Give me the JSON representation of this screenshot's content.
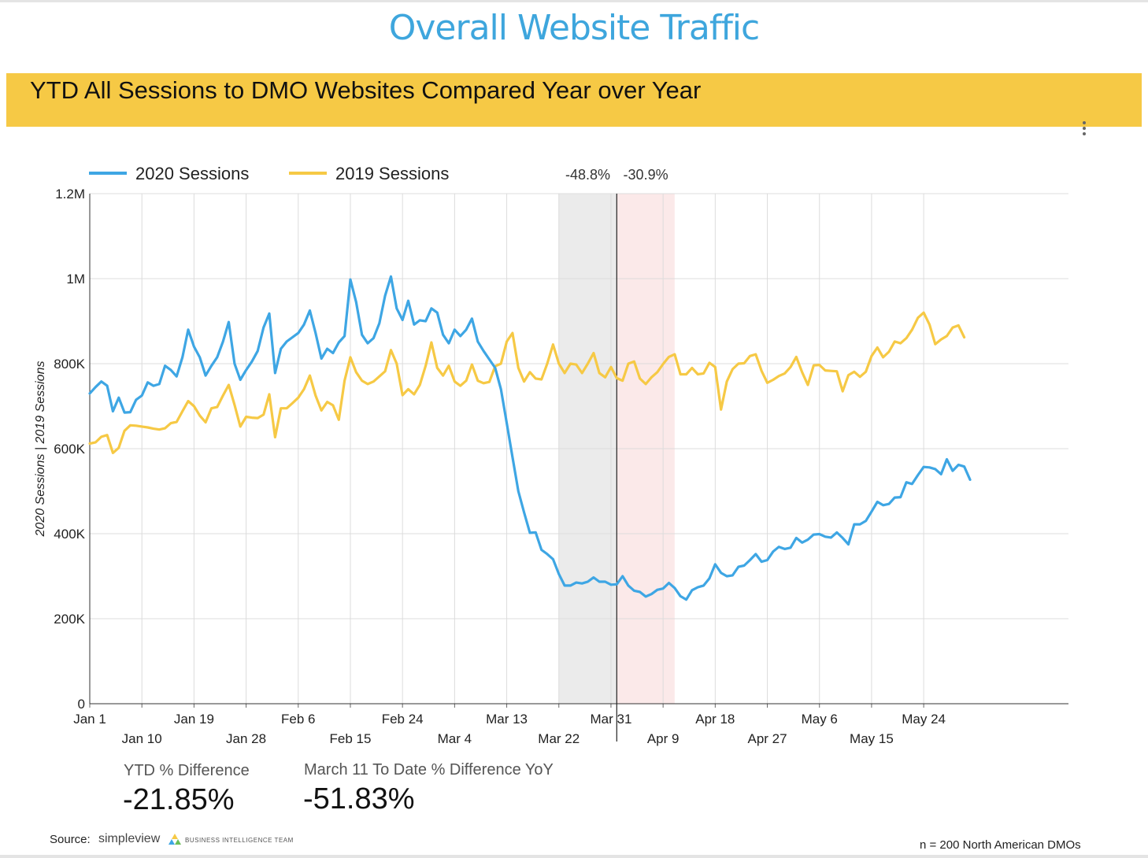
{
  "header": {
    "title": "Overall Website Traffic"
  },
  "banner": {
    "title": "YTD All Sessions to DMO Websites Compared Year over Year"
  },
  "menu": {
    "icon": "more-vert-icon"
  },
  "kpis": [
    {
      "label": "YTD % Difference",
      "value": "-21.85%"
    },
    {
      "label": "March 11 To Date % Difference YoY",
      "value": "-51.83%"
    }
  ],
  "footer": {
    "source_label": "Source:",
    "logo_word": "simpleview",
    "logo_sub": "BUSINESS INTELLIGENCE TEAM",
    "note": "n = 200 North American DMOs"
  },
  "colors": {
    "s2020": "#3ea6e4",
    "s2019": "#f6c945",
    "banner": "#f6c945",
    "title": "#3ea6dd",
    "shadeGray": "#ebebeb",
    "shadePink": "#fbe9e9"
  },
  "chart_data": {
    "type": "line",
    "title": "",
    "xlabel": "",
    "ylabel": "2020 Sessions | 2019 Sessions",
    "ylim": [
      0,
      1200000
    ],
    "yticks": [
      0,
      200000,
      400000,
      600000,
      800000,
      1000000,
      1200000
    ],
    "ytick_labels": [
      "0",
      "200K",
      "400K",
      "600K",
      "800K",
      "1M",
      "1.2M"
    ],
    "x_start": "Jan 1",
    "x_days": 169,
    "xticks": [
      {
        "day": 0,
        "label": "Jan 1"
      },
      {
        "day": 9,
        "label": "Jan 10"
      },
      {
        "day": 18,
        "label": "Jan 19"
      },
      {
        "day": 27,
        "label": "Jan 28"
      },
      {
        "day": 36,
        "label": "Feb 6"
      },
      {
        "day": 45,
        "label": "Feb 15"
      },
      {
        "day": 54,
        "label": "Feb 24"
      },
      {
        "day": 63,
        "label": "Mar 4"
      },
      {
        "day": 72,
        "label": "Mar 13"
      },
      {
        "day": 81,
        "label": "Mar 22"
      },
      {
        "day": 90,
        "label": "Mar 31"
      },
      {
        "day": 99,
        "label": "Apr 9"
      },
      {
        "day": 108,
        "label": "Apr 18"
      },
      {
        "day": 117,
        "label": "Apr 27"
      },
      {
        "day": 126,
        "label": "May 6"
      },
      {
        "day": 135,
        "label": "May 15"
      },
      {
        "day": 144,
        "label": "May 24"
      }
    ],
    "legend_position": "top-left",
    "grid": true,
    "bands": [
      {
        "start": "Mar 22",
        "end": "Apr 1",
        "label": "-48.8%"
      },
      {
        "start": "Apr 1",
        "end": "Apr 11",
        "label": "-30.9%"
      }
    ],
    "divider": "Apr 1",
    "series": [
      {
        "name": "2020 Sessions",
        "values": [
          730000,
          745000,
          758000,
          748000,
          688000,
          720000,
          685000,
          686000,
          715000,
          725000,
          756000,
          748000,
          752000,
          795000,
          785000,
          770000,
          815000,
          880000,
          840000,
          815000,
          772000,
          795000,
          815000,
          852000,
          898000,
          800000,
          762000,
          785000,
          805000,
          830000,
          885000,
          918000,
          778000,
          835000,
          852000,
          862000,
          872000,
          892000,
          925000,
          872000,
          812000,
          835000,
          825000,
          850000,
          865000,
          998000,
          945000,
          868000,
          848000,
          860000,
          895000,
          960000,
          1005000,
          930000,
          903000,
          948000,
          892000,
          902000,
          900000,
          930000,
          920000,
          868000,
          848000,
          880000,
          865000,
          880000,
          906000,
          852000,
          830000,
          810000,
          790000,
          740000,
          660000,
          580000,
          500000,
          450000,
          402000,
          403000,
          362000,
          352000,
          340000,
          305000,
          278000,
          278000,
          285000,
          283000,
          287000,
          297000,
          287000,
          287000,
          280000,
          281000,
          300000,
          278000,
          266000,
          263000,
          252000,
          258000,
          268000,
          271000,
          284000,
          272000,
          253000,
          245000,
          267000,
          274000,
          278000,
          295000,
          328000,
          308000,
          300000,
          302000,
          322000,
          325000,
          338000,
          352000,
          334000,
          338000,
          358000,
          369000,
          364000,
          367000,
          390000,
          379000,
          386000,
          398000,
          399000,
          393000,
          391000,
          403000,
          390000,
          375000,
          422000,
          422000,
          430000,
          452000,
          475000,
          467000,
          470000,
          485000,
          486000,
          521000,
          517000,
          538000,
          557000,
          556000,
          552000,
          540000,
          575000,
          548000,
          562000,
          558000,
          527000
        ]
      },
      {
        "name": "2019 Sessions",
        "values": [
          612000,
          615000,
          628000,
          632000,
          590000,
          602000,
          642000,
          655000,
          654000,
          652000,
          650000,
          647000,
          645000,
          648000,
          660000,
          663000,
          688000,
          712000,
          700000,
          678000,
          662000,
          695000,
          698000,
          725000,
          750000,
          703000,
          652000,
          675000,
          673000,
          672000,
          680000,
          728000,
          627000,
          695000,
          695000,
          707000,
          720000,
          740000,
          772000,
          725000,
          690000,
          710000,
          702000,
          668000,
          760000,
          815000,
          780000,
          760000,
          752000,
          758000,
          770000,
          782000,
          832000,
          800000,
          726000,
          740000,
          728000,
          750000,
          795000,
          850000,
          790000,
          772000,
          795000,
          758000,
          748000,
          760000,
          798000,
          760000,
          754000,
          757000,
          794000,
          800000,
          852000,
          872000,
          790000,
          758000,
          780000,
          765000,
          763000,
          800000,
          845000,
          800000,
          778000,
          800000,
          798000,
          778000,
          800000,
          825000,
          778000,
          768000,
          792000,
          766000,
          760000,
          800000,
          805000,
          765000,
          752000,
          768000,
          780000,
          799000,
          816000,
          822000,
          775000,
          775000,
          790000,
          775000,
          777000,
          802000,
          792000,
          692000,
          758000,
          787000,
          800000,
          801000,
          818000,
          822000,
          783000,
          755000,
          762000,
          771000,
          777000,
          792000,
          816000,
          780000,
          750000,
          796000,
          797000,
          784000,
          783000,
          782000,
          735000,
          773000,
          781000,
          769000,
          781000,
          818000,
          838000,
          815000,
          828000,
          852000,
          848000,
          860000,
          880000,
          908000,
          920000,
          892000,
          846000,
          857000,
          865000,
          885000,
          890000,
          862000
        ]
      }
    ]
  }
}
